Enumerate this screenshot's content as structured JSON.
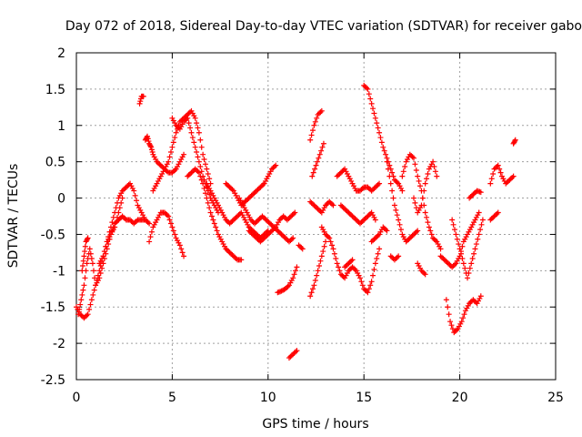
{
  "chart_data": {
    "type": "scatter",
    "title": "Day 072 of 2018, Sidereal Day-to-day VTEC variation (SDTVAR) for receiver gabo",
    "xlabel": "GPS time / hours",
    "ylabel": "SDTVAR / TECUs",
    "xlim": [
      0,
      25
    ],
    "ylim": [
      -2.5,
      2
    ],
    "xticks": [
      0,
      5,
      10,
      15,
      20,
      25
    ],
    "xtick_labels": [
      "0",
      "5",
      "10",
      "15",
      "20",
      "25"
    ],
    "yticks": [
      -2.5,
      -2,
      -1.5,
      -1,
      -0.5,
      0,
      0.5,
      1,
      1.5,
      2
    ],
    "ytick_labels": [
      "-2.5",
      "-2",
      "-1.5",
      "-1",
      "-0.5",
      "0",
      "0.5",
      "1",
      "1.5",
      "2"
    ],
    "grid": true,
    "marker": "plus",
    "color": "#ff0000",
    "series": [
      {
        "name": "s1",
        "x": [
          0.0,
          0.2,
          0.4,
          0.6,
          0.8,
          1.0,
          1.2,
          1.4,
          1.6,
          1.8,
          2.0,
          2.2,
          2.4,
          2.6,
          2.8,
          3.0,
          3.2,
          3.4,
          3.6
        ],
        "y": [
          -1.5,
          -1.6,
          -1.65,
          -1.6,
          -1.4,
          -1.2,
          -1.0,
          -0.8,
          -0.6,
          -0.4,
          -0.2,
          0.0,
          0.1,
          0.15,
          0.2,
          0.1,
          -0.1,
          -0.2,
          -0.3
        ]
      },
      {
        "name": "s2",
        "x": [
          0.1,
          0.25,
          0.4,
          0.55,
          0.7,
          0.85,
          1.0,
          1.2,
          1.4,
          1.6,
          1.8,
          2.0,
          2.2,
          2.4
        ],
        "y": [
          -1.6,
          -1.4,
          -1.2,
          -0.9,
          -0.7,
          -0.9,
          -1.2,
          -1.1,
          -0.9,
          -0.7,
          -0.5,
          -0.4,
          -0.2,
          0.0
        ]
      },
      {
        "name": "s3",
        "x": [
          0.3,
          0.4,
          0.5,
          0.6
        ],
        "y": [
          -1.0,
          -0.8,
          -0.6,
          -0.55
        ]
      },
      {
        "name": "s4",
        "x": [
          1.2,
          1.4,
          1.6,
          1.8,
          2.0,
          2.2,
          2.4,
          2.6,
          2.8,
          3.0,
          3.2,
          3.4,
          3.6,
          3.8
        ],
        "y": [
          -0.9,
          -0.8,
          -0.6,
          -0.5,
          -0.35,
          -0.3,
          -0.25,
          -0.3,
          -0.3,
          -0.35,
          -0.3,
          -0.3,
          -0.3,
          -0.35
        ]
      },
      {
        "name": "s5",
        "x": [
          3.3,
          3.4,
          3.5
        ],
        "y": [
          1.3,
          1.4,
          1.4
        ]
      },
      {
        "name": "s6",
        "x": [
          3.6,
          3.7,
          3.8,
          3.9,
          4.0,
          4.2,
          4.4,
          4.6,
          4.8,
          5.0,
          5.2,
          5.4,
          5.6
        ],
        "y": [
          0.8,
          0.85,
          0.75,
          0.7,
          0.6,
          0.5,
          0.45,
          0.4,
          0.35,
          0.35,
          0.4,
          0.5,
          0.6
        ]
      },
      {
        "name": "s7",
        "x": [
          3.8,
          4.0,
          4.2,
          4.4,
          4.6,
          4.8,
          5.0,
          5.2,
          5.4,
          5.6
        ],
        "y": [
          -0.6,
          -0.4,
          -0.3,
          -0.2,
          -0.2,
          -0.25,
          -0.4,
          -0.55,
          -0.65,
          -0.8
        ]
      },
      {
        "name": "s8",
        "x": [
          4.0,
          4.2,
          4.4,
          4.6,
          4.8,
          5.0,
          5.2,
          5.4,
          5.6,
          5.8,
          6.0,
          6.2,
          6.4,
          6.6,
          6.8,
          7.0
        ],
        "y": [
          0.1,
          0.2,
          0.3,
          0.4,
          0.5,
          0.7,
          0.9,
          1.05,
          1.1,
          1.15,
          1.2,
          1.1,
          0.9,
          0.6,
          0.4,
          0.2
        ]
      },
      {
        "name": "s9",
        "x": [
          5.0,
          5.2,
          5.4,
          5.6,
          5.8,
          6.0,
          6.2,
          6.4,
          6.6,
          6.8,
          7.0,
          7.2,
          7.4
        ],
        "y": [
          1.1,
          1.0,
          0.95,
          1.05,
          1.1,
          0.9,
          0.7,
          0.5,
          0.3,
          0.15,
          0.0,
          -0.1,
          -0.2
        ]
      },
      {
        "name": "s10",
        "x": [
          5.8,
          6.0,
          6.2,
          6.4,
          6.6,
          6.8,
          7.0,
          7.2,
          7.4,
          7.6,
          7.8,
          8.0,
          8.2,
          8.4,
          8.6
        ],
        "y": [
          0.3,
          0.35,
          0.4,
          0.35,
          0.2,
          0.0,
          -0.2,
          -0.35,
          -0.5,
          -0.6,
          -0.7,
          -0.75,
          -0.8,
          -0.85,
          -0.85
        ]
      },
      {
        "name": "s11",
        "x": [
          6.8,
          7.0,
          7.2,
          7.4,
          7.6,
          7.8,
          8.0,
          8.2,
          8.4,
          8.6,
          8.8,
          9.0,
          9.2,
          9.4,
          9.6,
          9.8,
          10.0
        ],
        "y": [
          0.2,
          0.1,
          0.0,
          -0.1,
          -0.2,
          -0.3,
          -0.35,
          -0.3,
          -0.25,
          -0.2,
          -0.3,
          -0.4,
          -0.45,
          -0.5,
          -0.55,
          -0.5,
          -0.45
        ]
      },
      {
        "name": "s12",
        "x": [
          7.8,
          8.0,
          8.2,
          8.4,
          8.6,
          8.8,
          9.0,
          9.2,
          9.4,
          9.6,
          9.8,
          10.0,
          10.2,
          10.4
        ],
        "y": [
          0.2,
          0.15,
          0.1,
          0.0,
          -0.1,
          -0.05,
          0.0,
          0.05,
          0.1,
          0.15,
          0.2,
          0.3,
          0.4,
          0.45
        ]
      },
      {
        "name": "s13",
        "x": [
          8.5,
          8.7,
          8.9,
          9.1,
          9.3,
          9.5,
          9.7,
          9.9,
          10.1,
          10.3,
          10.5,
          10.7,
          10.9,
          11.1,
          11.3
        ],
        "y": [
          0.0,
          -0.1,
          -0.2,
          -0.3,
          -0.35,
          -0.3,
          -0.25,
          -0.3,
          -0.35,
          -0.4,
          -0.45,
          -0.5,
          -0.55,
          -0.6,
          -0.55
        ]
      },
      {
        "name": "s14",
        "x": [
          9.0,
          9.2,
          9.4,
          9.6,
          9.8,
          10.0,
          10.2,
          10.4,
          10.6,
          10.8,
          11.0,
          11.2,
          11.4
        ],
        "y": [
          -0.45,
          -0.5,
          -0.55,
          -0.6,
          -0.55,
          -0.5,
          -0.45,
          -0.4,
          -0.3,
          -0.25,
          -0.3,
          -0.25,
          -0.2
        ]
      },
      {
        "name": "s15",
        "x": [
          10.5,
          10.7,
          10.9,
          11.1,
          11.3,
          11.5
        ],
        "y": [
          -1.3,
          -1.28,
          -1.25,
          -1.2,
          -1.1,
          -0.95
        ]
      },
      {
        "name": "s16",
        "x": [
          11.6,
          11.8
        ],
        "y": [
          -0.65,
          -0.7
        ]
      },
      {
        "name": "s17",
        "x": [
          11.1,
          11.3,
          11.5
        ],
        "y": [
          -2.2,
          -2.15,
          -2.1
        ]
      },
      {
        "name": "s18",
        "x": [
          12.2,
          12.4,
          12.6,
          12.8
        ],
        "y": [
          0.8,
          1.0,
          1.15,
          1.2
        ]
      },
      {
        "name": "s19",
        "x": [
          12.3,
          12.5,
          12.7,
          12.9
        ],
        "y": [
          0.3,
          0.45,
          0.6,
          0.75
        ]
      },
      {
        "name": "s20",
        "x": [
          12.2,
          12.4,
          12.6,
          12.8,
          13.0,
          13.2,
          13.4
        ],
        "y": [
          -0.05,
          -0.1,
          -0.15,
          -0.2,
          -0.1,
          -0.05,
          -0.1
        ]
      },
      {
        "name": "s21",
        "x": [
          12.2,
          12.4,
          12.6,
          12.8,
          13.0
        ],
        "y": [
          -1.35,
          -1.2,
          -1.0,
          -0.8,
          -0.6
        ]
      },
      {
        "name": "s22",
        "x": [
          12.8,
          13.0,
          13.2,
          13.4,
          13.6,
          13.8,
          14.0,
          14.2,
          14.4,
          14.6,
          14.8,
          15.0,
          15.2,
          15.4,
          15.6,
          15.8
        ],
        "y": [
          -0.4,
          -0.5,
          -0.55,
          -0.7,
          -0.9,
          -1.05,
          -1.1,
          -1.0,
          -0.95,
          -1.0,
          -1.1,
          -1.25,
          -1.3,
          -1.15,
          -0.9,
          -0.7
        ]
      },
      {
        "name": "s23",
        "x": [
          13.6,
          13.8,
          14.0,
          14.2,
          14.4,
          14.6,
          14.8,
          15.0,
          15.2,
          15.4,
          15.6,
          15.8
        ],
        "y": [
          0.3,
          0.35,
          0.4,
          0.3,
          0.2,
          0.1,
          0.1,
          0.15,
          0.15,
          0.1,
          0.15,
          0.2
        ]
      },
      {
        "name": "s24",
        "x": [
          15.0,
          15.2,
          15.4,
          15.6,
          15.8,
          16.0,
          16.2,
          16.4,
          16.6,
          16.8,
          17.0
        ],
        "y": [
          1.55,
          1.5,
          1.3,
          1.1,
          0.9,
          0.7,
          0.55,
          0.4,
          0.25,
          0.2,
          0.1
        ]
      },
      {
        "name": "s25",
        "x": [
          13.8,
          14.0,
          14.2,
          14.4,
          14.6,
          14.8,
          15.0,
          15.2,
          15.4,
          15.6
        ],
        "y": [
          -0.1,
          -0.15,
          -0.2,
          -0.25,
          -0.3,
          -0.35,
          -0.3,
          -0.25,
          -0.2,
          -0.3
        ]
      },
      {
        "name": "s26",
        "x": [
          14.0,
          14.2,
          14.4
        ],
        "y": [
          -0.95,
          -0.9,
          -0.85
        ]
      },
      {
        "name": "s27",
        "x": [
          15.4,
          15.6,
          15.8,
          16.0,
          16.2
        ],
        "y": [
          -0.6,
          -0.55,
          -0.5,
          -0.4,
          -0.45
        ]
      },
      {
        "name": "s28",
        "x": [
          16.2,
          16.4,
          16.6,
          16.8,
          17.0,
          17.2,
          17.4,
          17.6,
          17.8
        ],
        "y": [
          0.5,
          0.2,
          -0.1,
          -0.3,
          -0.5,
          -0.6,
          -0.55,
          -0.5,
          -0.45
        ]
      },
      {
        "name": "s29",
        "x": [
          16.4,
          16.6,
          16.8
        ],
        "y": [
          -0.8,
          -0.85,
          -0.8
        ]
      },
      {
        "name": "s30",
        "x": [
          17.0,
          17.2,
          17.4,
          17.6,
          17.8,
          18.0,
          18.2,
          18.4,
          18.6,
          18.8,
          19.0
        ],
        "y": [
          0.3,
          0.5,
          0.6,
          0.55,
          0.3,
          0.1,
          -0.2,
          -0.4,
          -0.55,
          -0.6,
          -0.7
        ]
      },
      {
        "name": "s31",
        "x": [
          17.6,
          17.8,
          18.0,
          18.2,
          18.4,
          18.6,
          18.8
        ],
        "y": [
          0.0,
          -0.2,
          -0.1,
          0.2,
          0.4,
          0.5,
          0.3
        ]
      },
      {
        "name": "s32",
        "x": [
          17.8,
          18.0,
          18.2
        ],
        "y": [
          -0.9,
          -1.0,
          -1.05
        ]
      },
      {
        "name": "s33",
        "x": [
          19.0,
          19.2,
          19.4,
          19.6,
          19.8,
          20.0,
          20.2,
          20.4,
          20.6,
          20.8,
          21.0
        ],
        "y": [
          -0.8,
          -0.85,
          -0.9,
          -0.95,
          -0.9,
          -0.8,
          -0.6,
          -0.5,
          -0.4,
          -0.3,
          -0.2
        ]
      },
      {
        "name": "s34",
        "x": [
          19.3,
          19.5,
          19.7,
          19.9,
          20.1,
          20.3,
          20.5,
          20.7,
          20.9,
          21.1
        ],
        "y": [
          -1.4,
          -1.7,
          -1.85,
          -1.8,
          -1.7,
          -1.55,
          -1.45,
          -1.4,
          -1.45,
          -1.35
        ]
      },
      {
        "name": "s35",
        "x": [
          19.6,
          19.8,
          20.0,
          20.2,
          20.4,
          20.6,
          20.8,
          21.0,
          21.2
        ],
        "y": [
          -0.3,
          -0.5,
          -0.7,
          -0.9,
          -1.1,
          -0.9,
          -0.7,
          -0.5,
          -0.3
        ]
      },
      {
        "name": "s36",
        "x": [
          20.5,
          20.7,
          20.9,
          21.1
        ],
        "y": [
          0.0,
          0.05,
          0.1,
          0.08
        ]
      },
      {
        "name": "s37",
        "x": [
          21.6,
          21.8,
          22.0,
          22.2,
          22.4,
          22.6,
          22.8
        ],
        "y": [
          0.2,
          0.4,
          0.45,
          0.3,
          0.2,
          0.25,
          0.3
        ]
      },
      {
        "name": "s38",
        "x": [
          21.6,
          21.8,
          22.0
        ],
        "y": [
          -0.3,
          -0.25,
          -0.2
        ]
      },
      {
        "name": "s39",
        "x": [
          22.8,
          22.9
        ],
        "y": [
          0.75,
          0.8
        ]
      }
    ]
  }
}
